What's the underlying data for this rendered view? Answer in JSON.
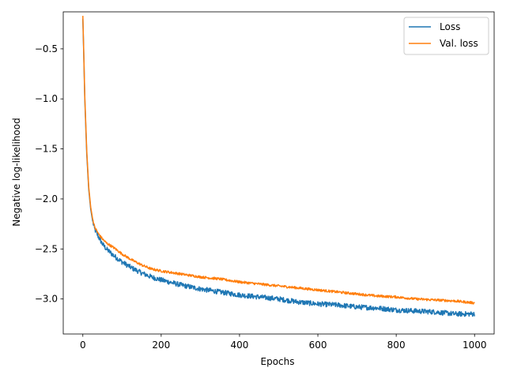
{
  "chart_data": {
    "type": "line",
    "title": "",
    "xlabel": "Epochs",
    "ylabel": "Negative log-likelihood",
    "xlim": [
      -50,
      1050
    ],
    "ylim": [
      -3.35,
      -0.13
    ],
    "xticks": [
      0,
      200,
      400,
      600,
      800,
      1000
    ],
    "xtick_labels": [
      "0",
      "200",
      "400",
      "600",
      "800",
      "1000"
    ],
    "yticks": [
      -0.5,
      -1.0,
      -1.5,
      -2.0,
      -2.5,
      -3.0
    ],
    "ytick_labels": [
      "−0.5",
      "−1.0",
      "−1.5",
      "−2.0",
      "−2.5",
      "−3.0"
    ],
    "grid": false,
    "legend_position": "top-right",
    "series": [
      {
        "name": "Loss",
        "color": "#1f77b4",
        "noise": 0.025,
        "x": [
          0,
          2,
          5,
          10,
          15,
          20,
          25,
          30,
          40,
          50,
          60,
          80,
          100,
          125,
          150,
          175,
          200,
          250,
          300,
          350,
          400,
          450,
          500,
          550,
          600,
          650,
          700,
          750,
          800,
          850,
          900,
          950,
          1000
        ],
        "y": [
          -0.2,
          -0.5,
          -1.0,
          -1.55,
          -1.9,
          -2.1,
          -2.22,
          -2.3,
          -2.38,
          -2.45,
          -2.5,
          -2.57,
          -2.63,
          -2.69,
          -2.74,
          -2.78,
          -2.81,
          -2.86,
          -2.9,
          -2.93,
          -2.96,
          -2.98,
          -3.0,
          -3.03,
          -3.05,
          -3.06,
          -3.08,
          -3.09,
          -3.11,
          -3.12,
          -3.13,
          -3.15,
          -3.15
        ]
      },
      {
        "name": "Val. loss",
        "color": "#ff7f0e",
        "noise": 0.012,
        "x": [
          0,
          2,
          5,
          10,
          15,
          20,
          25,
          30,
          40,
          50,
          60,
          80,
          100,
          125,
          150,
          175,
          200,
          250,
          300,
          350,
          400,
          450,
          500,
          550,
          600,
          650,
          700,
          750,
          800,
          850,
          900,
          950,
          1000
        ],
        "y": [
          -0.17,
          -0.48,
          -0.98,
          -1.52,
          -1.88,
          -2.08,
          -2.2,
          -2.28,
          -2.35,
          -2.4,
          -2.44,
          -2.49,
          -2.55,
          -2.61,
          -2.66,
          -2.7,
          -2.72,
          -2.75,
          -2.78,
          -2.8,
          -2.83,
          -2.85,
          -2.87,
          -2.89,
          -2.91,
          -2.93,
          -2.95,
          -2.97,
          -2.98,
          -3.0,
          -3.01,
          -3.02,
          -3.04
        ]
      }
    ]
  }
}
